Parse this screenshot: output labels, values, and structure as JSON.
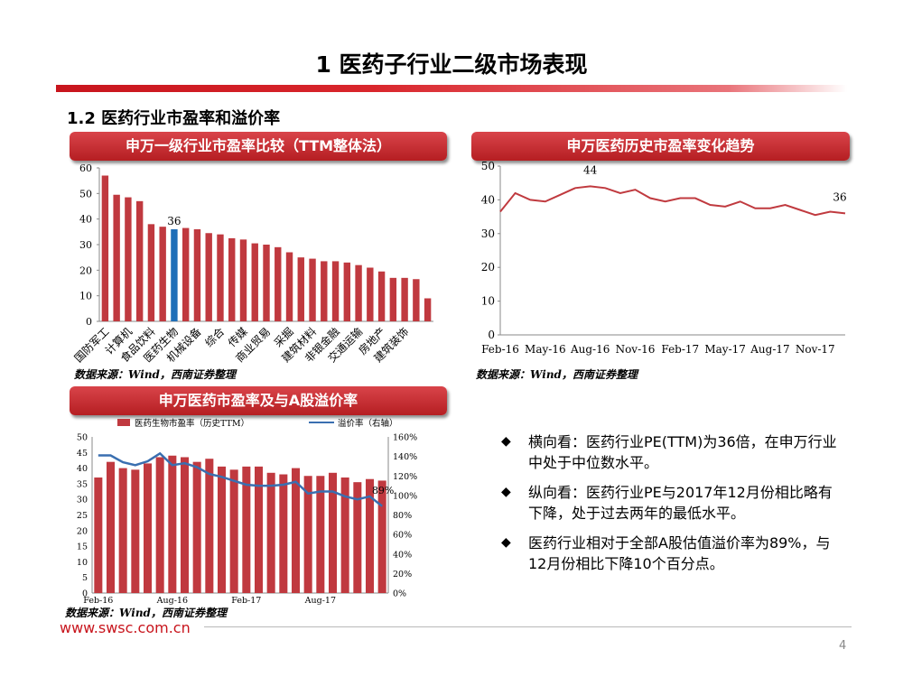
{
  "page_title": "1 医药子行业二级市场表现",
  "section_title": "1.2 医药行业市盈率和溢价率",
  "page_number": "4",
  "footer_url": "www.swsc.com.cn",
  "source_note": "数据来源：Wind，西南证券整理",
  "colors": {
    "brand_red": "#c0262c",
    "bar_red": "#c0393f",
    "highlight_blue": "#1f6fb8",
    "line_red": "#c03a3f",
    "line_blue": "#3a6fb0"
  },
  "bullets": [
    {
      "icon": "diamond-bullet-icon",
      "text": "横向看：医药行业PE(TTM)为36倍，在申万行业中处于中位数水平。"
    },
    {
      "icon": "diamond-bullet-icon",
      "text": "纵向看：医药行业PE与2017年12月份相比略有下降，处于过去两年的最低水平。"
    },
    {
      "icon": "diamond-bullet-icon",
      "text": "医药行业相对于全部A股估值溢价率为89%，与12月份相比下降10个百分点。"
    }
  ],
  "chart_data": [
    {
      "id": "industry_pe",
      "type": "bar",
      "title": "申万一级行业市盈率比较（TTM整体法）",
      "yticks": [
        "0",
        "10",
        "20",
        "30",
        "40",
        "50",
        "60"
      ],
      "ylim": [
        0,
        60
      ],
      "values": [
        57,
        49.5,
        48.5,
        47,
        38,
        37,
        36,
        36.5,
        36,
        34.5,
        34,
        32.5,
        32,
        30.5,
        30,
        29,
        27,
        25,
        24.5,
        23.5,
        23.5,
        23,
        22,
        21,
        19.5,
        17,
        17,
        16.5,
        9
      ],
      "highlight_index": 6,
      "highlight_label": "36",
      "x_labels": [
        "国防军工",
        "计算机",
        "食品饮料",
        "医药生物",
        "机械设备",
        "综合",
        "传媒",
        "商业贸易",
        "采掘",
        "建筑材料",
        "非银金融",
        "交通运输",
        "房地产",
        "建筑装饰"
      ]
    },
    {
      "id": "pharma_pe_history",
      "type": "line",
      "title": "申万医药历史市盈率变化趋势",
      "yticks": [
        "0",
        "10",
        "20",
        "30",
        "40",
        "50"
      ],
      "ylim": [
        0,
        50
      ],
      "x_labels": [
        "Feb-16",
        "May-16",
        "Aug-16",
        "Nov-16",
        "Feb-17",
        "May-17",
        "Aug-17",
        "Nov-17"
      ],
      "values": [
        36.5,
        42,
        40,
        39.5,
        41.5,
        43.5,
        44,
        43.5,
        42,
        43,
        40.5,
        39.5,
        40.5,
        40.5,
        38.5,
        38,
        39.5,
        37.5,
        37.5,
        38.5,
        37,
        35.5,
        36.5,
        36
      ],
      "point_labels": [
        {
          "index": 6,
          "text": "44"
        },
        {
          "index": 23,
          "text": "36"
        }
      ]
    },
    {
      "id": "pharma_pe_premium",
      "type": "bar+line",
      "title": "申万医药市盈率及与A股溢价率",
      "legend": [
        "医药生物市盈率（历史TTM）",
        "溢价率（右轴）"
      ],
      "yticks_left": [
        "0",
        "5",
        "10",
        "15",
        "20",
        "25",
        "30",
        "35",
        "40",
        "45",
        "50"
      ],
      "yticks_right": [
        "0%",
        "20%",
        "40%",
        "60%",
        "80%",
        "100%",
        "120%",
        "140%",
        "160%"
      ],
      "ylim_left": [
        0,
        50
      ],
      "ylim_right": [
        0,
        160
      ],
      "x_labels": [
        "Feb-16",
        "Aug-16",
        "Feb-17",
        "Aug-17"
      ],
      "x_label_index": [
        0,
        6,
        12,
        18
      ],
      "pe_values": [
        37,
        42,
        40,
        39.5,
        41.5,
        43.5,
        44,
        43.5,
        42,
        43,
        40.5,
        39.5,
        40.5,
        40.5,
        38.5,
        38,
        40,
        37.5,
        37.5,
        38.5,
        37,
        35.5,
        36.5,
        36
      ],
      "premium_values": [
        141,
        141,
        134,
        131,
        135,
        143,
        131,
        133,
        129,
        122,
        119,
        115,
        111,
        110,
        110,
        111,
        114,
        102,
        104,
        104,
        99,
        96,
        99,
        89
      ],
      "premium_label": "89%"
    }
  ]
}
